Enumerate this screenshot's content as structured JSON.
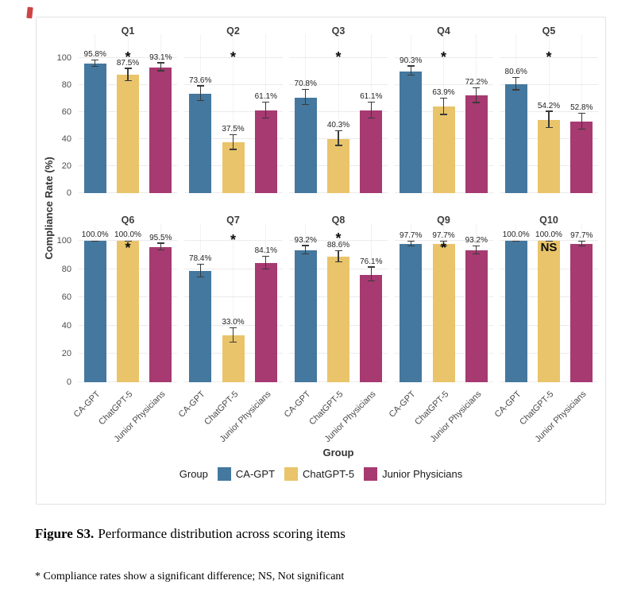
{
  "figure": {
    "caption_label": "Figure S3.",
    "caption_text": "Performance distribution across scoring items",
    "footnote": "* Compliance rates show a significant difference; NS, Not significant"
  },
  "chart_data": {
    "type": "bar",
    "faceted": true,
    "ylabel": "Compliance Rate (%)",
    "xlabel": "Group",
    "legend_title": "Group",
    "legend_position": "bottom",
    "ylim": [
      0,
      100
    ],
    "yticks": [
      0,
      20,
      40,
      60,
      80,
      100
    ],
    "grid": true,
    "error_bars": true,
    "groups": [
      "CA-GPT",
      "ChatGPT-5",
      "Junior Physicians"
    ],
    "colors": [
      "#44789E",
      "#E9C46A",
      "#A63A71"
    ],
    "error_bar_color": "#3a3a3a",
    "facets": [
      {
        "name": "Q1",
        "values": [
          95.8,
          87.5,
          93.1
        ],
        "errors": [
          2.5,
          4.5,
          3.0
        ],
        "significance": "*",
        "marker_pct": 103
      },
      {
        "name": "Q2",
        "values": [
          73.6,
          37.5,
          61.1
        ],
        "errors": [
          5.5,
          5.5,
          6.0
        ],
        "significance": "*",
        "marker_pct": 103
      },
      {
        "name": "Q3",
        "values": [
          70.8,
          40.3,
          61.1
        ],
        "errors": [
          5.5,
          5.5,
          6.0
        ],
        "significance": "*",
        "marker_pct": 103
      },
      {
        "name": "Q4",
        "values": [
          90.3,
          63.9,
          72.2
        ],
        "errors": [
          3.5,
          6.0,
          5.5
        ],
        "significance": "*",
        "marker_pct": 103
      },
      {
        "name": "Q5",
        "values": [
          80.6,
          54.2,
          52.8
        ],
        "errors": [
          4.5,
          6.0,
          6.0
        ],
        "significance": "*",
        "marker_pct": 103
      },
      {
        "name": "Q6",
        "values": [
          100.0,
          100.0,
          95.5
        ],
        "errors": [
          0,
          0,
          2.5
        ],
        "significance": "*",
        "marker_pct": 97
      },
      {
        "name": "Q7",
        "values": [
          78.4,
          33.0,
          84.1
        ],
        "errors": [
          4.5,
          5.0,
          4.5
        ],
        "significance": "*",
        "marker_pct": 103
      },
      {
        "name": "Q8",
        "values": [
          93.2,
          88.6,
          76.1
        ],
        "errors": [
          3.0,
          4.0,
          5.0
        ],
        "significance": "*",
        "marker_pct": 104
      },
      {
        "name": "Q9",
        "values": [
          97.7,
          97.7,
          93.2
        ],
        "errors": [
          1.8,
          1.8,
          2.8
        ],
        "significance": "*",
        "marker_pct": 97
      },
      {
        "name": "Q10",
        "values": [
          100.0,
          100.0,
          97.7
        ],
        "errors": [
          0,
          0,
          1.8
        ],
        "significance": "NS",
        "marker_pct": 95
      }
    ]
  }
}
